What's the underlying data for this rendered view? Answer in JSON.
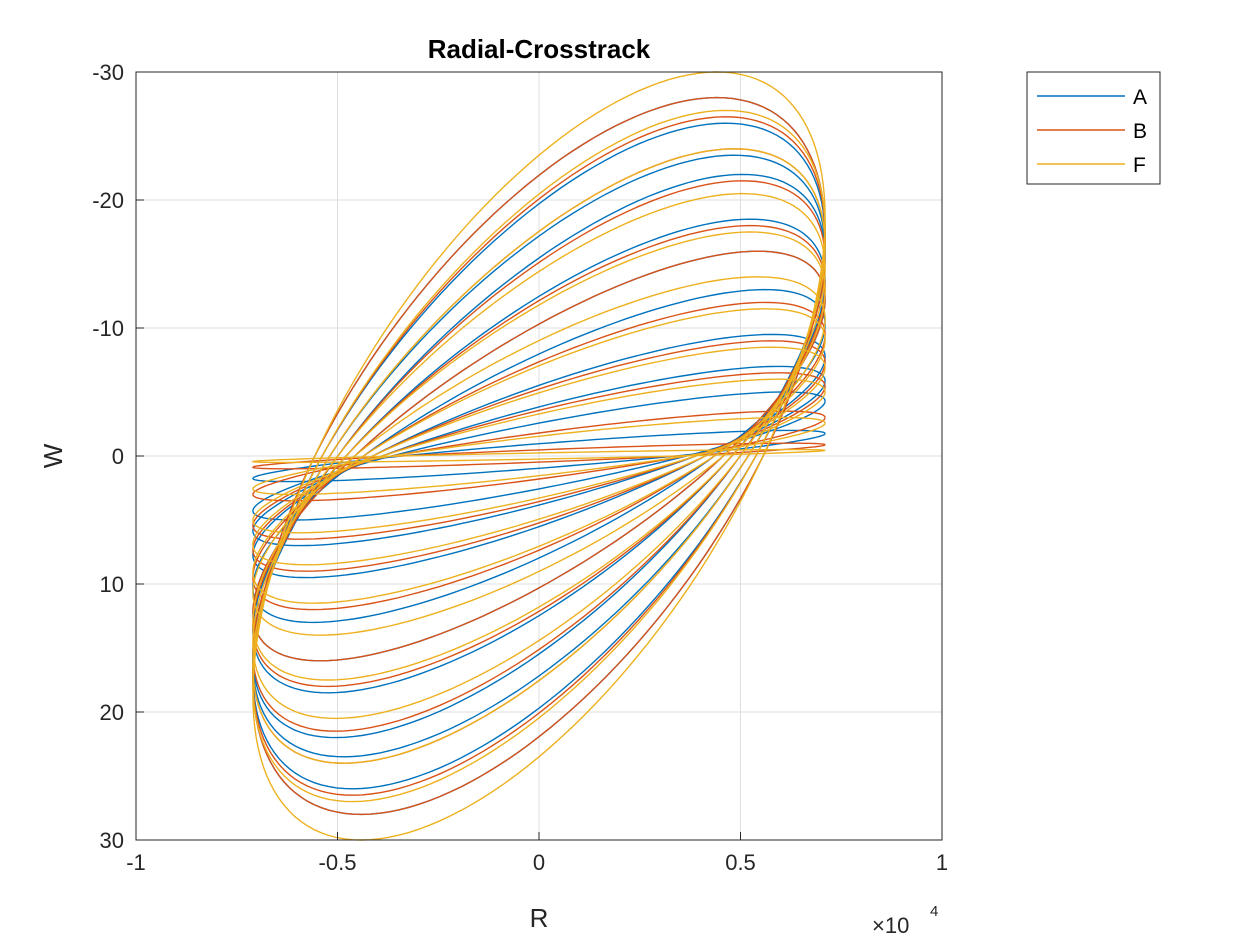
{
  "chart_data": {
    "type": "line",
    "title": "Radial-Crosstrack",
    "xlabel": "R",
    "ylabel": "W",
    "x_exponent_label": "×10",
    "x_exponent_power": "4",
    "xlim": [
      -10000,
      10000
    ],
    "ylim": [
      -30,
      30
    ],
    "y_reversed": true,
    "x_ticks": [
      -10000,
      -5000,
      0,
      5000,
      10000
    ],
    "x_tick_labels": [
      "-1",
      "-0.5",
      "0",
      "0.5",
      "1"
    ],
    "y_ticks": [
      -30,
      -20,
      -10,
      0,
      10,
      20,
      30
    ],
    "y_tick_labels": [
      "-30",
      "-20",
      "-10",
      "0",
      "10",
      "20",
      "30"
    ],
    "grid": true,
    "legend_position": "outside-top-right",
    "series": [
      {
        "name": "A",
        "color": "#0072BD",
        "r_range": [
          -7100,
          7100
        ],
        "w_crossings": [
          [
            -3500,
            0
          ],
          [
            3600,
            0
          ]
        ],
        "loop_amplitudes": [
          2,
          5,
          7,
          9.5,
          13,
          16,
          18.5,
          22,
          23.5,
          26,
          28
        ]
      },
      {
        "name": "B",
        "color": "#D95319",
        "r_range": [
          -7100,
          7100
        ],
        "w_crossings": [
          [
            -3500,
            0
          ],
          [
            3600,
            0
          ]
        ],
        "loop_amplitudes": [
          1,
          3.5,
          6.5,
          9,
          12,
          16,
          18,
          21.5,
          24,
          26.5,
          28
        ]
      },
      {
        "name": "F",
        "color": "#EDB120",
        "r_range": [
          -7100,
          7100
        ],
        "w_crossings": [
          [
            -3500,
            0
          ],
          [
            3600,
            0
          ]
        ],
        "loop_amplitudes": [
          0.5,
          3,
          6,
          8.5,
          11.5,
          14,
          17.5,
          20.5,
          24,
          27,
          30
        ]
      }
    ]
  }
}
